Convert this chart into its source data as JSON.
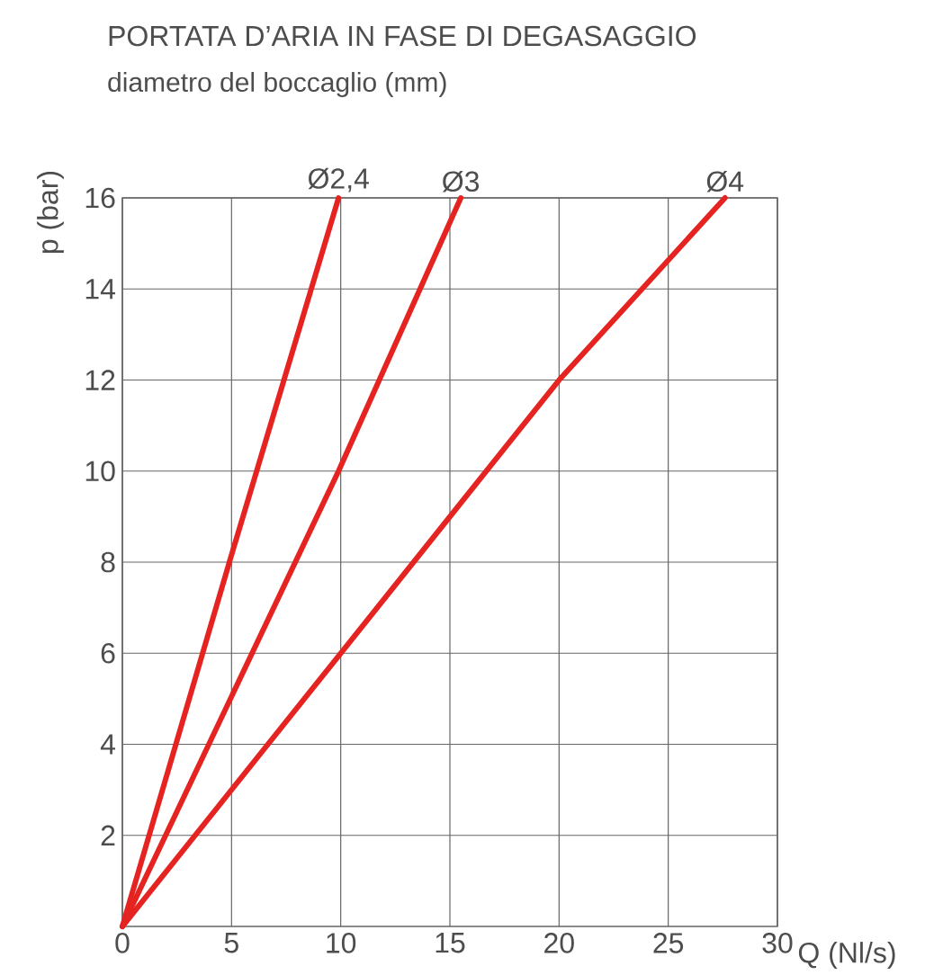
{
  "chart_data": {
    "type": "line",
    "title": "PORTATA D’ARIA IN FASE DI DEGASAGGIO",
    "subtitle": "diametro del boccaglio (mm)",
    "xlabel": "Q (Nl/s)",
    "ylabel": "p (bar)",
    "xlim": [
      0,
      30
    ],
    "ylim": [
      0,
      16
    ],
    "xticks": [
      0,
      5,
      10,
      15,
      20,
      25,
      30
    ],
    "yticks": [
      2,
      4,
      6,
      8,
      10,
      12,
      14,
      16
    ],
    "grid": true,
    "series": [
      {
        "name": "Ø2,4",
        "color": "#e52421",
        "x": [
          0,
          4.9,
          9.9
        ],
        "values": [
          0,
          8,
          16
        ]
      },
      {
        "name": "Ø3",
        "color": "#e52421",
        "x": [
          0,
          9.9,
          15.5
        ],
        "values": [
          0,
          10,
          16
        ]
      },
      {
        "name": "Ø4",
        "color": "#e52421",
        "x": [
          0,
          10,
          20,
          27.6
        ],
        "values": [
          0,
          6,
          12,
          16
        ]
      }
    ]
  }
}
